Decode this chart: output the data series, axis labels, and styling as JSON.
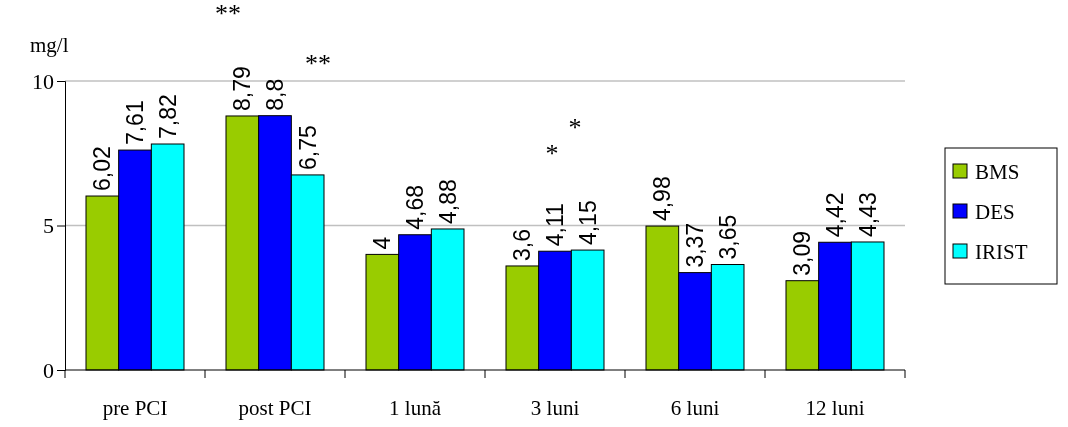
{
  "chart_data": {
    "type": "bar",
    "ylabel": "mg/l",
    "categories": [
      "pre PCI",
      "post PCI",
      "1 lună",
      "3 luni",
      "6 luni",
      "12 luni"
    ],
    "series": [
      {
        "name": "BMS",
        "color": "#99cc00",
        "values": [
          6.02,
          8.79,
          4,
          3.6,
          4.98,
          3.09
        ],
        "value_labels": [
          "6,02",
          "8,79",
          "4",
          "3,6",
          "4,98",
          "3,09"
        ]
      },
      {
        "name": "DES",
        "color": "#0000ff",
        "values": [
          7.61,
          8.8,
          4.68,
          4.11,
          3.37,
          4.42
        ],
        "value_labels": [
          "7,61",
          "8,8",
          "4,68",
          "4,11",
          "3,37",
          "4,42"
        ]
      },
      {
        "name": "IRIST",
        "color": "#00ffff",
        "values": [
          7.82,
          6.75,
          4.88,
          4.15,
          3.65,
          4.43
        ],
        "value_labels": [
          "7,82",
          "6,75",
          "4,88",
          "4,15",
          "3,65",
          "4,43"
        ]
      }
    ],
    "ylim": [
      0,
      10
    ],
    "yticks": [
      0,
      5,
      10
    ],
    "grid": "y",
    "legend": "right",
    "annotations": [
      "**",
      "**",
      "*",
      "*"
    ]
  }
}
